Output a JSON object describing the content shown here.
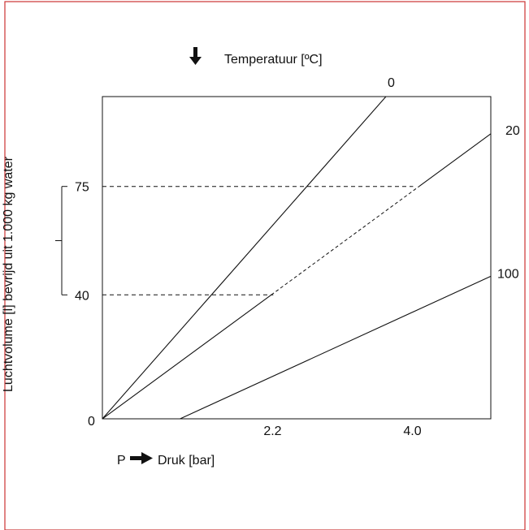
{
  "chart_data": {
    "type": "line",
    "title": "",
    "top_label": "Temperatuur [ºC]",
    "xlabel": "Druk [bar]",
    "x_prefix": "P",
    "ylabel": "Luchtvolume [l] bevrijd uit 1.000 kg water",
    "xlim": [
      0,
      5.0
    ],
    "ylim": [
      0,
      104
    ],
    "x_ticks": [
      {
        "value": 2.2,
        "label": "2.2"
      },
      {
        "value": 4.0,
        "label": "4.0"
      }
    ],
    "y_ticks": [
      {
        "value": 0,
        "label": "0"
      },
      {
        "value": 40,
        "label": "40"
      },
      {
        "value": 75,
        "label": "75"
      }
    ],
    "series": [
      {
        "name": "0",
        "points": [
          [
            0,
            0
          ],
          [
            3.65,
            104
          ]
        ]
      },
      {
        "name": "20",
        "points": [
          [
            0,
            0
          ],
          [
            5.0,
            92
          ]
        ]
      },
      {
        "name": "100",
        "points": [
          [
            1.0,
            0
          ],
          [
            5.0,
            46
          ]
        ]
      }
    ],
    "reference_lines": [
      {
        "y": 75,
        "x_end": 4.0
      },
      {
        "y": 40,
        "x_end": 2.2
      }
    ],
    "bracket": {
      "y_from": 40,
      "y_to": 75
    },
    "grid": false,
    "legend": "none"
  },
  "colors": {
    "background": "#ffffff",
    "frame_border": "#cc3333",
    "ink": "#111111"
  },
  "icons": {
    "down_arrow": "arrow-down-icon",
    "right_arrow": "arrow-right-icon"
  }
}
